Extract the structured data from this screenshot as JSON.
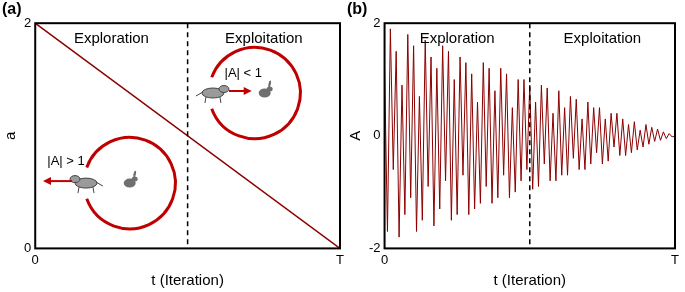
{
  "chart_data": [
    {
      "type": "line",
      "title": "(a)",
      "xlabel": "t (Iteration)",
      "ylabel": "a",
      "x": [
        0,
        100
      ],
      "values": [
        2,
        0
      ],
      "color": "#8b0000",
      "xlim": [
        0,
        100
      ],
      "xticks": [
        0,
        {
          "value": 100,
          "label": "T"
        }
      ],
      "ylim": [
        0,
        2
      ],
      "yticks": [
        0,
        2
      ],
      "grid": false,
      "phase_boundary": 50,
      "phases": [
        "Exploration",
        "Exploitation"
      ],
      "annotations": [
        "|A| > 1",
        "|A| < 1"
      ]
    },
    {
      "type": "line",
      "title": "(b)",
      "xlabel": "t (Iteration)",
      "ylabel": "A",
      "x": [
        0,
        1,
        2,
        3,
        4,
        5,
        6,
        7,
        8,
        9,
        10,
        11,
        12,
        13,
        14,
        15,
        16,
        17,
        18,
        19,
        20,
        21,
        22,
        23,
        24,
        25,
        26,
        27,
        28,
        29,
        30,
        31,
        32,
        33,
        34,
        35,
        36,
        37,
        38,
        39,
        40,
        41,
        42,
        43,
        44,
        45,
        46,
        47,
        48,
        49,
        50,
        51,
        52,
        53,
        54,
        55,
        56,
        57,
        58,
        59,
        60,
        61,
        62,
        63,
        64,
        65,
        66,
        67,
        68,
        69,
        70,
        71,
        72,
        73,
        74,
        75,
        76,
        77,
        78,
        79,
        80,
        81,
        82,
        83,
        84,
        85,
        86,
        87,
        88,
        89,
        90,
        91,
        92,
        93,
        94,
        95,
        96,
        97,
        98,
        99,
        100
      ],
      "values": [
        1.2,
        -1.7,
        1.9,
        -0.6,
        1.5,
        -1.8,
        0.9,
        -1.4,
        1.8,
        -1.1,
        1.6,
        -1.7,
        0.7,
        -1.5,
        1.7,
        -0.9,
        1.4,
        -1.6,
        1.2,
        -1.3,
        1.6,
        -0.8,
        1.5,
        -1.5,
        1.0,
        -1.4,
        1.4,
        -0.7,
        1.3,
        -1.4,
        1.1,
        -1.3,
        0.6,
        -1.2,
        1.3,
        -0.9,
        1.2,
        -1.2,
        0.8,
        -1.1,
        1.2,
        -0.7,
        1.1,
        -1.1,
        0.5,
        -1.0,
        1.0,
        -0.8,
        1.0,
        -0.6,
        0.9,
        -0.95,
        0.6,
        -0.9,
        0.9,
        -0.5,
        0.85,
        -0.8,
        0.4,
        -0.8,
        0.8,
        -0.7,
        0.5,
        -0.7,
        0.7,
        -0.4,
        0.65,
        -0.6,
        0.3,
        -0.6,
        0.6,
        -0.5,
        0.5,
        -0.3,
        0.5,
        -0.5,
        0.3,
        -0.45,
        0.4,
        -0.2,
        0.4,
        -0.35,
        0.3,
        -0.35,
        0.2,
        -0.3,
        0.25,
        -0.25,
        0.1,
        -0.2,
        0.2,
        -0.15,
        0.15,
        -0.1,
        0.12,
        -0.08,
        0.07,
        -0.05,
        0.04,
        -0.02,
        0
      ],
      "color": "#8b0000",
      "xlim": [
        0,
        100
      ],
      "xticks": [
        0,
        {
          "value": 100,
          "label": "T"
        }
      ],
      "ylim": [
        -2,
        2
      ],
      "yticks": [
        -2,
        0,
        2
      ],
      "grid": false,
      "phase_boundary": 50,
      "phases": [
        "Exploration",
        "Exploitation"
      ]
    }
  ]
}
